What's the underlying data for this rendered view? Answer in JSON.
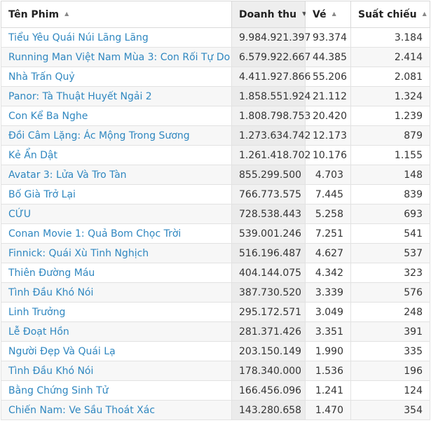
{
  "header": {
    "title": "Tên Phim",
    "revenue": "Doanh thu",
    "tickets": "Vé",
    "showtimes": "Suất chiếu"
  },
  "sort": {
    "column": "revenue",
    "direction": "desc"
  },
  "rows": [
    {
      "title": "Tiểu Yêu Quái Núi Lãng Lãng",
      "revenue": "9.984.921.397",
      "tickets": "93.374",
      "showtimes": "3.184"
    },
    {
      "title": "Running Man Việt Nam Mùa 3: Con Rối Tự Do",
      "revenue": "6.579.922.667",
      "tickets": "44.385",
      "showtimes": "2.414"
    },
    {
      "title": "Nhà Trấn Quỷ",
      "revenue": "4.411.927.866",
      "tickets": "55.206",
      "showtimes": "2.081"
    },
    {
      "title": "Panor: Tà Thuật Huyết Ngải 2",
      "revenue": "1.858.551.924",
      "tickets": "21.112",
      "showtimes": "1.324"
    },
    {
      "title": "Con Kể Ba Nghe",
      "revenue": "1.808.798.753",
      "tickets": "20.420",
      "showtimes": "1.239"
    },
    {
      "title": "Đồi Câm Lặng: Ác Mộng Trong Sương",
      "revenue": "1.273.634.742",
      "tickets": "12.173",
      "showtimes": "879"
    },
    {
      "title": "Kẻ Ẩn Dật",
      "revenue": "1.261.418.702",
      "tickets": "10.176",
      "showtimes": "1.155"
    },
    {
      "title": "Avatar 3: Lửa Và Tro Tàn",
      "revenue": "855.299.500",
      "tickets": "4.703",
      "showtimes": "148"
    },
    {
      "title": "Bố Già Trở Lại",
      "revenue": "766.773.575",
      "tickets": "7.445",
      "showtimes": "839"
    },
    {
      "title": "CỨU",
      "revenue": "728.538.443",
      "tickets": "5.258",
      "showtimes": "693"
    },
    {
      "title": "Conan Movie 1: Quả Bom Chọc Trời",
      "revenue": "539.001.246",
      "tickets": "7.251",
      "showtimes": "541"
    },
    {
      "title": "Finnick: Quái Xù Tinh Nghịch",
      "revenue": "516.196.487",
      "tickets": "4.627",
      "showtimes": "537"
    },
    {
      "title": "Thiên Đường Máu",
      "revenue": "404.144.075",
      "tickets": "4.342",
      "showtimes": "323"
    },
    {
      "title": "Tình Đầu Khó Nói",
      "revenue": "387.730.520",
      "tickets": "3.339",
      "showtimes": "576"
    },
    {
      "title": "Linh Trưởng",
      "revenue": "295.172.571",
      "tickets": "3.049",
      "showtimes": "248"
    },
    {
      "title": "Lễ Đoạt Hồn",
      "revenue": "281.371.426",
      "tickets": "3.351",
      "showtimes": "391"
    },
    {
      "title": "Người Đẹp Và Quái Lạ",
      "revenue": "203.150.149",
      "tickets": "1.990",
      "showtimes": "335"
    },
    {
      "title": "Tình Đầu Khó Nói",
      "revenue": "178.340.000",
      "tickets": "1.536",
      "showtimes": "196"
    },
    {
      "title": "Bằng Chứng Sinh Tử",
      "revenue": "166.456.096",
      "tickets": "1.241",
      "showtimes": "124"
    },
    {
      "title": "Chiến Nam: Ve Sầu Thoát Xác",
      "revenue": "143.280.658",
      "tickets": "1.470",
      "showtimes": "354"
    }
  ]
}
